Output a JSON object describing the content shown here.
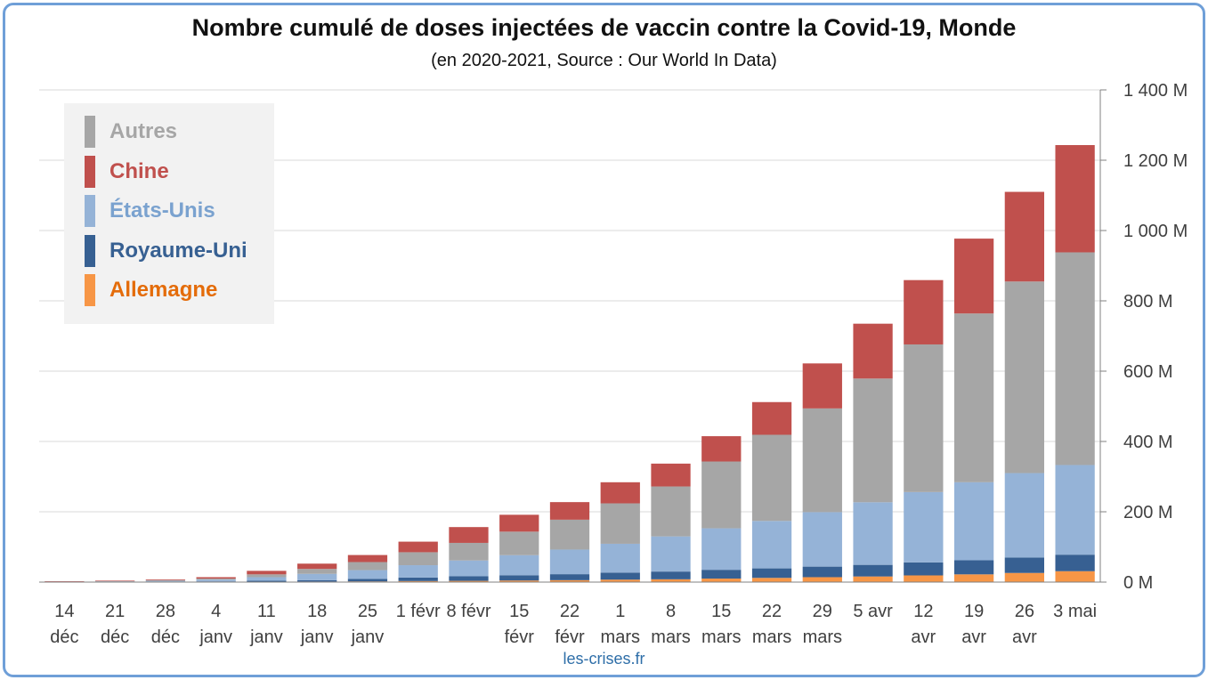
{
  "chart_data": {
    "type": "bar",
    "stacked": true,
    "title": "Nombre cumulé de doses injectées de vaccin contre la Covid-19, Monde",
    "subtitle": "(en 2020-2021, Source : Our World In Data)",
    "source": "les-crises.fr",
    "categories": [
      [
        "14",
        "déc"
      ],
      [
        "21",
        "déc"
      ],
      [
        "28",
        "déc"
      ],
      [
        "4",
        "janv"
      ],
      [
        "11",
        "janv"
      ],
      [
        "18",
        "janv"
      ],
      [
        "25",
        "janv"
      ],
      [
        "1 févr",
        ""
      ],
      [
        "8 févr",
        ""
      ],
      [
        "15",
        "févr"
      ],
      [
        "22",
        "févr"
      ],
      [
        "1",
        "mars"
      ],
      [
        "8",
        "mars"
      ],
      [
        "15",
        "mars"
      ],
      [
        "22",
        "mars"
      ],
      [
        "29",
        "mars"
      ],
      [
        "5 avr",
        ""
      ],
      [
        "12",
        "avr"
      ],
      [
        "19",
        "avr"
      ],
      [
        "26",
        "avr"
      ],
      [
        "3 mai",
        ""
      ]
    ],
    "y_unit_suffix": " M",
    "ylim": [
      0,
      1400
    ],
    "yticks": [
      0,
      200,
      400,
      600,
      800,
      1000,
      1200,
      1400
    ],
    "ytick_labels": [
      "0 M",
      "200 M",
      "400 M",
      "600 M",
      "800 M",
      "1 000 M",
      "1 200 M",
      "1 400 M"
    ],
    "grid": true,
    "legend_position": "top-left",
    "series": [
      {
        "name": "Allemagne",
        "color": "#f79646",
        "label_color": "#e46c0a",
        "values": [
          0,
          0,
          0.3,
          0.5,
          1,
          1.5,
          2,
          3,
          3.5,
          4.5,
          5.5,
          7,
          8,
          10,
          12,
          14,
          16,
          19,
          22,
          26,
          31
        ]
      },
      {
        "name": "Royaume-Uni",
        "color": "#376092",
        "label_color": "#376092",
        "values": [
          0.5,
          1,
          1.3,
          1.5,
          3,
          4,
          7,
          10,
          13,
          15,
          17,
          20,
          22,
          25,
          27,
          30,
          33,
          37,
          40,
          44,
          47
        ]
      },
      {
        "name": "États-Unis",
        "color": "#95b3d7",
        "label_color": "#7aa2cf",
        "values": [
          0.5,
          1,
          2,
          5,
          10,
          18,
          25,
          35,
          45,
          57,
          70,
          82,
          100,
          118,
          135,
          155,
          178,
          200,
          222,
          240,
          255
        ]
      },
      {
        "name": "Autres",
        "color": "#a6a6a6",
        "label_color": "#a6a6a6",
        "values": [
          0.5,
          1,
          2,
          3,
          8,
          14,
          23,
          37,
          50,
          67,
          85,
          115,
          142,
          190,
          245,
          295,
          352,
          420,
          480,
          545,
          605
        ]
      },
      {
        "name": "Chine",
        "color": "#c0504d",
        "label_color": "#c0504d",
        "values": [
          1,
          1.5,
          2,
          4,
          10,
          15,
          20,
          30,
          45,
          48,
          50,
          60,
          65,
          72,
          93,
          128,
          156,
          183,
          213,
          255,
          305
        ]
      }
    ]
  },
  "legend_order": [
    "Autres",
    "Chine",
    "États-Unis",
    "Royaume-Uni",
    "Allemagne"
  ]
}
